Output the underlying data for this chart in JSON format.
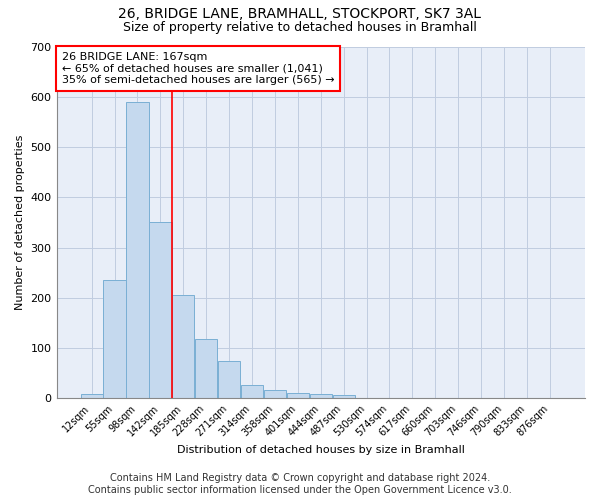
{
  "title": "26, BRIDGE LANE, BRAMHALL, STOCKPORT, SK7 3AL",
  "subtitle": "Size of property relative to detached houses in Bramhall",
  "xlabel": "Distribution of detached houses by size in Bramhall",
  "ylabel": "Number of detached properties",
  "bar_color": "#c5d9ee",
  "bar_edge_color": "#7aafd4",
  "background_color": "#e8eef8",
  "grid_color": "#c0cce0",
  "categories": [
    "12sqm",
    "55sqm",
    "98sqm",
    "142sqm",
    "185sqm",
    "228sqm",
    "271sqm",
    "314sqm",
    "358sqm",
    "401sqm",
    "444sqm",
    "487sqm",
    "530sqm",
    "574sqm",
    "617sqm",
    "660sqm",
    "703sqm",
    "746sqm",
    "790sqm",
    "833sqm",
    "876sqm"
  ],
  "values": [
    8,
    235,
    590,
    350,
    205,
    118,
    75,
    27,
    16,
    10,
    9,
    6,
    0,
    0,
    0,
    0,
    0,
    0,
    0,
    0,
    0
  ],
  "ylim": [
    0,
    700
  ],
  "yticks": [
    0,
    100,
    200,
    300,
    400,
    500,
    600,
    700
  ],
  "annotation_line1": "26 BRIDGE LANE: 167sqm",
  "annotation_line2": "← 65% of detached houses are smaller (1,041)",
  "annotation_line3": "35% of semi-detached houses are larger (565) →",
  "property_line_x": 3.5,
  "footer_line1": "Contains HM Land Registry data © Crown copyright and database right 2024.",
  "footer_line2": "Contains public sector information licensed under the Open Government Licence v3.0.",
  "title_fontsize": 10,
  "subtitle_fontsize": 9,
  "annotation_fontsize": 8,
  "footer_fontsize": 7,
  "ylabel_fontsize": 8,
  "xlabel_fontsize": 8,
  "ytick_fontsize": 8,
  "xtick_fontsize": 7
}
